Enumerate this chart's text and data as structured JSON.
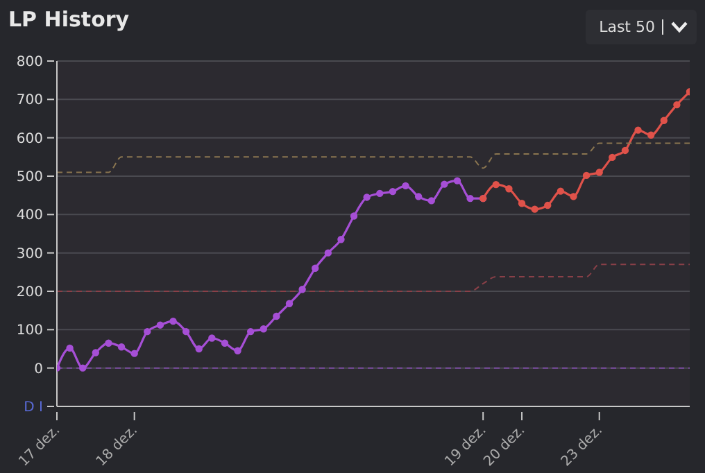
{
  "chart_data": {
    "type": "line",
    "title": "LP History",
    "annotations": [
      "Last 50"
    ],
    "categories": [
      "17 dez.",
      null,
      null,
      null,
      null,
      null,
      "18 dez.",
      null,
      null,
      null,
      null,
      null,
      null,
      null,
      null,
      null,
      null,
      null,
      null,
      null,
      null,
      null,
      null,
      null,
      null,
      null,
      null,
      null,
      null,
      null,
      null,
      null,
      null,
      "19 dez.",
      null,
      null,
      "20 dez.",
      null,
      null,
      null,
      null,
      null,
      "23 dez.",
      null,
      null,
      null,
      null,
      null,
      null,
      null
    ],
    "series": [
      {
        "color": "#a64fd6",
        "values": [
          0,
          52,
          0,
          40,
          65,
          55,
          38,
          95,
          112,
          122,
          95,
          50,
          78,
          65,
          45,
          95,
          102,
          135,
          168,
          205,
          260,
          300,
          335,
          396,
          445,
          455,
          460,
          475,
          447,
          436,
          479,
          488,
          442,
          442,
          null,
          null,
          null,
          null,
          null,
          null,
          null,
          null,
          null,
          null,
          null,
          null,
          null,
          null,
          null,
          null
        ]
      },
      {
        "color": "#e0524a",
        "values": [
          null,
          null,
          null,
          null,
          null,
          null,
          null,
          null,
          null,
          null,
          null,
          null,
          null,
          null,
          null,
          null,
          null,
          null,
          null,
          null,
          null,
          null,
          null,
          null,
          null,
          null,
          null,
          null,
          null,
          null,
          null,
          null,
          null,
          442,
          478,
          467,
          429,
          414,
          424,
          461,
          447,
          502,
          510,
          549,
          567,
          620,
          607,
          645,
          686,
          720
        ]
      },
      {
        "color": "#8a7550",
        "line_style": "dashed",
        "marker": "none",
        "values": [
          510,
          510,
          510,
          510,
          510,
          550,
          550,
          550,
          550,
          550,
          550,
          550,
          550,
          550,
          550,
          550,
          550,
          550,
          550,
          550,
          550,
          550,
          550,
          550,
          550,
          550,
          550,
          550,
          550,
          550,
          550,
          550,
          550,
          521,
          558,
          558,
          558,
          558,
          558,
          558,
          558,
          558,
          586,
          586,
          586,
          586,
          586,
          586,
          586,
          586
        ]
      },
      {
        "color": "#8a4048",
        "line_style": "dashed",
        "marker": "none",
        "values": [
          200,
          200,
          200,
          200,
          200,
          200,
          200,
          200,
          200,
          200,
          200,
          200,
          200,
          200,
          200,
          200,
          200,
          200,
          200,
          200,
          200,
          200,
          200,
          200,
          200,
          200,
          200,
          200,
          200,
          200,
          200,
          200,
          200,
          220,
          238,
          238,
          238,
          238,
          238,
          238,
          238,
          238,
          270,
          270,
          270,
          270,
          270,
          270,
          270,
          270
        ]
      }
    ],
    "ref_lines": [
      {
        "axis": "y",
        "value": 0,
        "color": "#7a4aa0",
        "line_style": "dashed"
      }
    ],
    "ylim": [
      -100,
      800
    ],
    "yticks": [
      {
        "value": -100,
        "label": "D I"
      },
      0,
      100,
      200,
      300,
      400,
      500,
      600,
      700,
      800
    ],
    "grid": "y",
    "marker": "circle"
  }
}
